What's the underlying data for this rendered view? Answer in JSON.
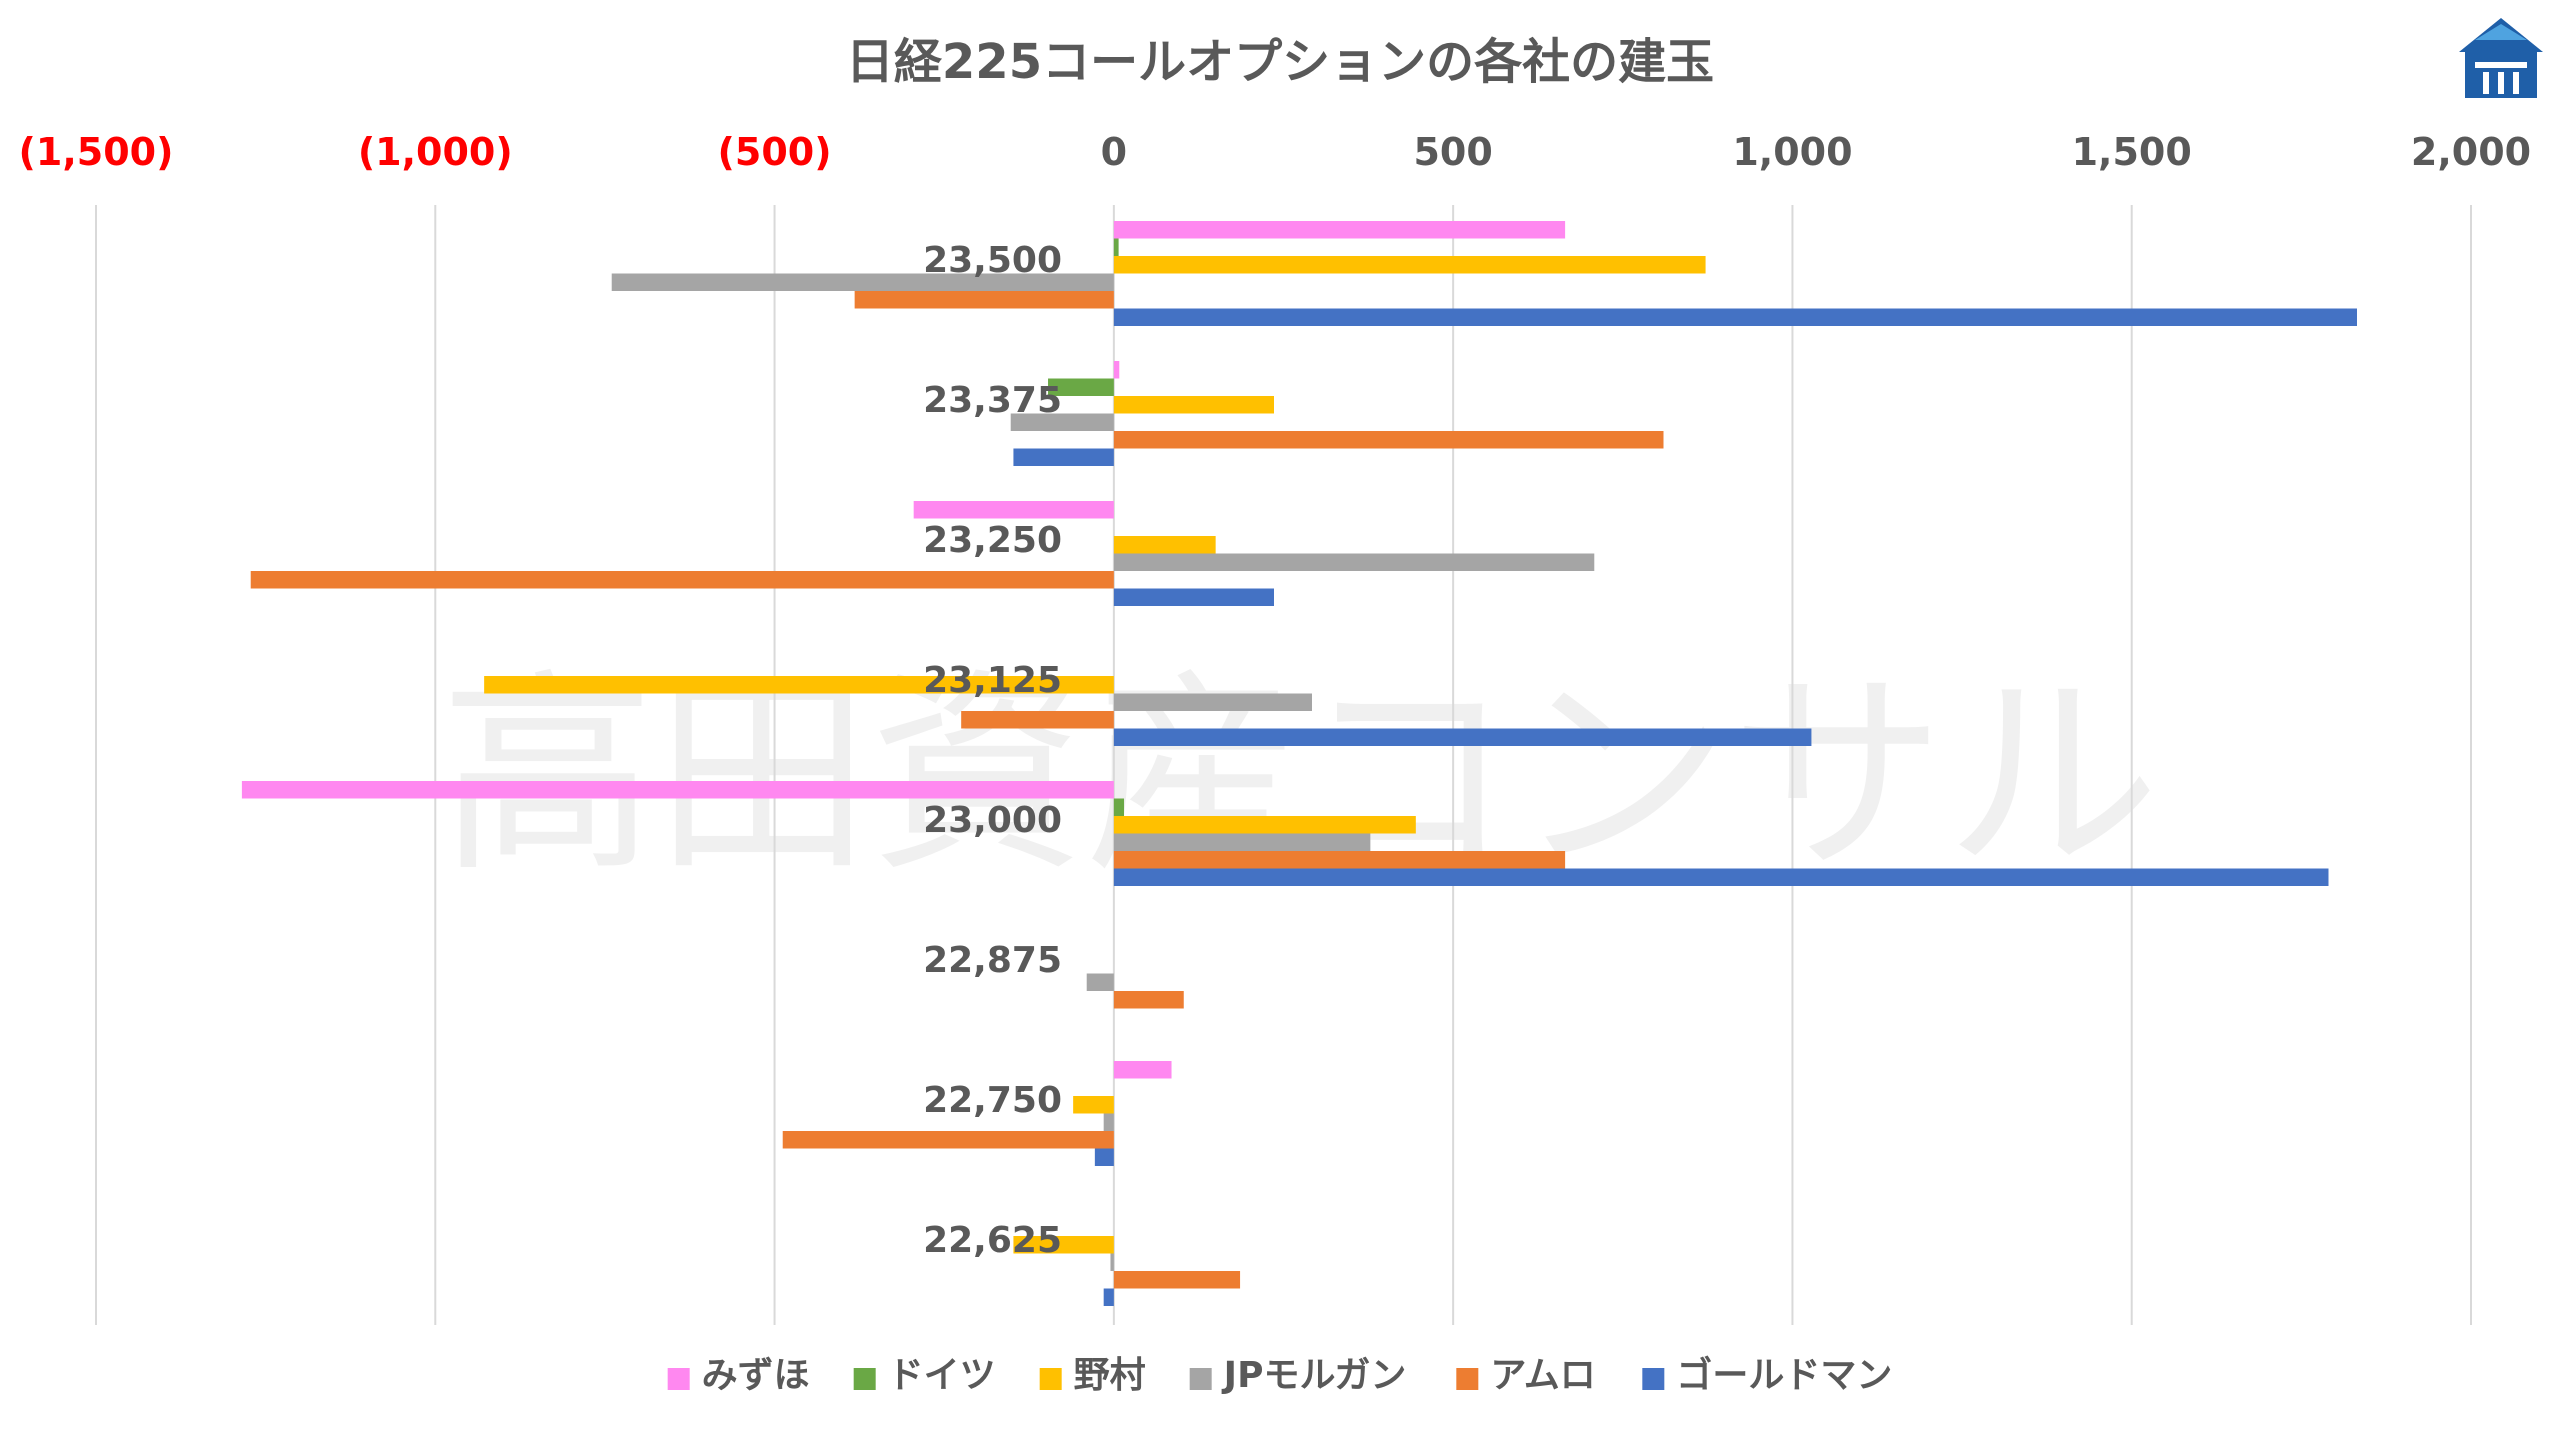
{
  "chart_data": {
    "type": "bar",
    "orientation": "horizontal",
    "title": "日経225コールオプションの各社の建玉",
    "watermark": "高田資産コンサル",
    "xlim": [
      -1500,
      2000
    ],
    "x_ticks": [
      {
        "value": -1500,
        "label": "(1,500)",
        "color": "#ff0000"
      },
      {
        "value": -1000,
        "label": "(1,000)",
        "color": "#ff0000"
      },
      {
        "value": -500,
        "label": "(500)",
        "color": "#ff0000"
      },
      {
        "value": 0,
        "label": "0",
        "color": "#595959"
      },
      {
        "value": 500,
        "label": "500",
        "color": "#595959"
      },
      {
        "value": 1000,
        "label": "1,000",
        "color": "#595959"
      },
      {
        "value": 1500,
        "label": "1,500",
        "color": "#595959"
      },
      {
        "value": 2000,
        "label": "2,000",
        "color": "#595959"
      }
    ],
    "x_axis_position": "top",
    "grid": true,
    "legend_position": "bottom",
    "categories": [
      "23,500",
      "23,375",
      "23,250",
      "23,125",
      "23,000",
      "22,875",
      "22,750",
      "22,625"
    ],
    "series": [
      {
        "name": "みずほ",
        "color": "#ff88f0",
        "values": [
          665,
          8,
          -295,
          0,
          -1285,
          0,
          85,
          0
        ]
      },
      {
        "name": "ドイツ",
        "color": "#6aa845",
        "values": [
          7,
          -97,
          0,
          0,
          15,
          0,
          0,
          0
        ]
      },
      {
        "name": "野村",
        "color": "#ffc000",
        "values": [
          872,
          236,
          150,
          -928,
          445,
          0,
          -60,
          -148
        ]
      },
      {
        "name": "JPモルガン",
        "color": "#a5a5a5",
        "values": [
          -740,
          -152,
          708,
          292,
          378,
          -40,
          -15,
          -5
        ]
      },
      {
        "name": "アムロ",
        "color": "#ed7d31",
        "values": [
          -382,
          810,
          -1272,
          -225,
          665,
          103,
          -488,
          186
        ]
      },
      {
        "name": "ゴールドマン",
        "color": "#4472c4",
        "values": [
          1832,
          -148,
          236,
          1028,
          1790,
          0,
          -28,
          -15
        ]
      }
    ]
  }
}
